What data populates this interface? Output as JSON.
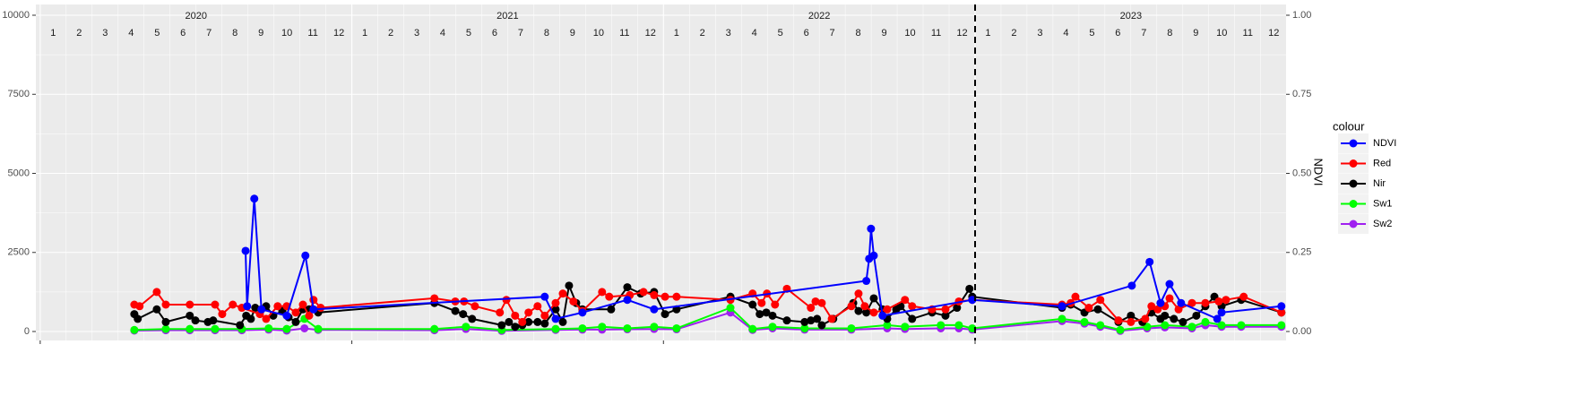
{
  "chart_data": {
    "type": "line",
    "y2_title": "NDVI",
    "legend_title": "colour",
    "legend_position": "right",
    "grid": true,
    "xlim": [
      2019.986,
      2023.998
    ],
    "xticks": [
      2020,
      2021,
      2022,
      2023
    ],
    "years": [
      2020,
      2021,
      2022,
      2023
    ],
    "months": [
      1,
      2,
      3,
      4,
      5,
      6,
      7,
      8,
      9,
      10,
      11,
      12
    ],
    "vline": 2023,
    "ylim": [
      -283,
      10340
    ],
    "yticks": [
      0,
      2500,
      5000,
      7500,
      10000
    ],
    "y2lim": [
      -0.0283,
      1.034
    ],
    "y2ticks": [
      {
        "value": 0,
        "label": "0.00"
      },
      {
        "value": 0.25,
        "label": "0.25"
      },
      {
        "value": 0.5,
        "label": "0.50"
      },
      {
        "value": 0.75,
        "label": "0.75"
      },
      {
        "value": 1,
        "label": "1.00"
      }
    ],
    "series": [
      {
        "name": "NDVI",
        "color": "#0000ff",
        "axis": "y2",
        "x": [
          2020.659,
          2020.664,
          2020.687,
          2020.71,
          2020.791,
          2020.851,
          2020.877,
          2021.619,
          2021.654,
          2021.74,
          2021.884,
          2021.97,
          2022.651,
          2022.66,
          2022.666,
          2022.675,
          2022.703,
          2022.991,
          2023.279,
          2023.503,
          2023.56,
          2023.595,
          2023.624,
          2023.661,
          2023.777,
          2023.791,
          2023.983
        ],
        "values": [
          0.255,
          0.08,
          0.42,
          0.07,
          0.05,
          0.24,
          0.07,
          0.11,
          0.04,
          0.06,
          0.1,
          0.07,
          0.16,
          0.23,
          0.325,
          0.24,
          0.05,
          0.1,
          0.08,
          0.145,
          0.22,
          0.09,
          0.15,
          0.09,
          0.04,
          0.06,
          0.08
        ]
      },
      {
        "name": "Red",
        "color": "#ff0000",
        "x": [
          2020.302,
          2020.319,
          2020.374,
          2020.403,
          2020.48,
          2020.561,
          2020.584,
          2020.618,
          2020.647,
          2020.705,
          2020.725,
          2020.762,
          2020.791,
          2020.82,
          2020.843,
          2020.863,
          2020.877,
          2020.9,
          2021.265,
          2021.332,
          2021.36,
          2021.395,
          2021.475,
          2021.496,
          2021.524,
          2021.547,
          2021.567,
          2021.596,
          2021.619,
          2021.654,
          2021.677,
          2021.711,
          2021.74,
          2021.803,
          2021.826,
          2021.892,
          2021.936,
          2021.97,
          2022.005,
          2022.042,
          2022.215,
          2022.286,
          2022.315,
          2022.332,
          2022.358,
          2022.396,
          2022.473,
          2022.488,
          2022.508,
          2022.54,
          2022.603,
          2022.626,
          2022.646,
          2022.675,
          2022.718,
          2022.775,
          2022.798,
          2022.862,
          2022.905,
          2022.948,
          2022.991,
          2023.279,
          2023.307,
          2023.322,
          2023.365,
          2023.402,
          2023.46,
          2023.5,
          2023.546,
          2023.566,
          2023.586,
          2023.609,
          2023.624,
          2023.653,
          2023.696,
          2023.739,
          2023.782,
          2023.805,
          2023.862,
          2023.983
        ],
        "values": [
          850,
          800,
          1250,
          850,
          850,
          850,
          550,
          850,
          750,
          550,
          400,
          800,
          800,
          600,
          850,
          500,
          1000,
          750,
          1050,
          950,
          950,
          800,
          600,
          1000,
          500,
          300,
          600,
          800,
          500,
          900,
          1200,
          950,
          650,
          1250,
          1100,
          1150,
          1250,
          1150,
          1100,
          1100,
          1000,
          1200,
          900,
          1200,
          850,
          1350,
          750,
          950,
          900,
          400,
          800,
          1200,
          800,
          600,
          700,
          1000,
          800,
          700,
          700,
          950,
          1000,
          850,
          900,
          1100,
          750,
          1000,
          350,
          300,
          400,
          800,
          700,
          800,
          1050,
          700,
          900,
          900,
          950,
          1000,
          1100,
          600
        ]
      },
      {
        "name": "Nir",
        "color": "#000000",
        "x": [
          2020.302,
          2020.313,
          2020.374,
          2020.403,
          2020.48,
          2020.498,
          2020.538,
          2020.555,
          2020.641,
          2020.661,
          2020.676,
          2020.69,
          2020.71,
          2020.725,
          2020.748,
          2020.777,
          2020.797,
          2020.82,
          2020.843,
          2020.863,
          2020.892,
          2021.265,
          2021.332,
          2021.357,
          2021.386,
          2021.481,
          2021.504,
          2021.524,
          2021.547,
          2021.567,
          2021.596,
          2021.619,
          2021.654,
          2021.677,
          2021.697,
          2021.72,
          2021.74,
          2021.832,
          2021.884,
          2021.927,
          2021.97,
          2022.005,
          2022.042,
          2022.215,
          2022.286,
          2022.309,
          2022.33,
          2022.35,
          2022.396,
          2022.453,
          2022.473,
          2022.493,
          2022.508,
          2022.545,
          2022.609,
          2022.626,
          2022.651,
          2022.675,
          2022.703,
          2022.718,
          2022.747,
          2022.761,
          2022.798,
          2022.862,
          2022.905,
          2022.942,
          2022.982,
          2022.991,
          2023.279,
          2023.307,
          2023.351,
          2023.394,
          2023.46,
          2023.5,
          2023.537,
          2023.566,
          2023.595,
          2023.609,
          2023.638,
          2023.667,
          2023.71,
          2023.739,
          2023.768,
          2023.791,
          2023.854,
          2023.983
        ],
        "values": [
          550,
          400,
          700,
          300,
          500,
          350,
          300,
          350,
          200,
          500,
          400,
          750,
          700,
          800,
          500,
          650,
          450,
          300,
          700,
          700,
          600,
          900,
          650,
          550,
          400,
          200,
          300,
          150,
          200,
          300,
          300,
          250,
          700,
          300,
          1450,
          900,
          700,
          700,
          1400,
          1200,
          1250,
          550,
          700,
          1100,
          850,
          550,
          600,
          500,
          350,
          300,
          350,
          400,
          200,
          400,
          900,
          650,
          600,
          1050,
          700,
          400,
          700,
          800,
          400,
          600,
          500,
          750,
          1350,
          1100,
          750,
          850,
          600,
          700,
          300,
          500,
          300,
          600,
          400,
          500,
          400,
          300,
          500,
          800,
          1100,
          800,
          1000,
          600
        ]
      },
      {
        "name": "Sw1",
        "color": "#00ff00",
        "x": [
          2020.302,
          2020.403,
          2020.48,
          2020.561,
          2020.647,
          2020.733,
          2020.791,
          2020.848,
          2020.892,
          2021.265,
          2021.366,
          2021.481,
          2021.654,
          2021.74,
          2021.803,
          2021.884,
          2021.97,
          2022.042,
          2022.215,
          2022.286,
          2022.35,
          2022.453,
          2022.603,
          2022.718,
          2022.775,
          2022.89,
          2022.948,
          2022.991,
          2023.279,
          2023.351,
          2023.402,
          2023.466,
          2023.552,
          2023.609,
          2023.696,
          2023.739,
          2023.791,
          2023.854,
          2023.983
        ],
        "values": [
          50,
          80,
          80,
          80,
          80,
          100,
          80,
          400,
          80,
          80,
          150,
          50,
          80,
          100,
          150,
          100,
          150,
          100,
          750,
          80,
          150,
          100,
          100,
          200,
          150,
          200,
          200,
          100,
          400,
          300,
          200,
          50,
          150,
          200,
          150,
          300,
          200,
          200,
          200
        ]
      },
      {
        "name": "Sw2",
        "color": "#a020f0",
        "x": [
          2020.302,
          2020.403,
          2020.48,
          2020.561,
          2020.647,
          2020.733,
          2020.791,
          2020.848,
          2020.892,
          2021.265,
          2021.366,
          2021.481,
          2021.654,
          2021.74,
          2021.803,
          2021.884,
          2021.97,
          2022.042,
          2022.215,
          2022.286,
          2022.35,
          2022.453,
          2022.603,
          2022.718,
          2022.775,
          2022.89,
          2022.948,
          2022.991,
          2023.279,
          2023.351,
          2023.402,
          2023.466,
          2023.552,
          2023.609,
          2023.696,
          2023.739,
          2023.791,
          2023.854,
          2023.983
        ],
        "values": [
          30,
          40,
          40,
          40,
          40,
          60,
          30,
          100,
          50,
          40,
          80,
          20,
          50,
          60,
          60,
          70,
          80,
          70,
          600,
          50,
          100,
          60,
          60,
          100,
          80,
          100,
          100,
          60,
          330,
          250,
          150,
          20,
          100,
          130,
          100,
          200,
          150,
          150,
          150
        ]
      }
    ]
  }
}
